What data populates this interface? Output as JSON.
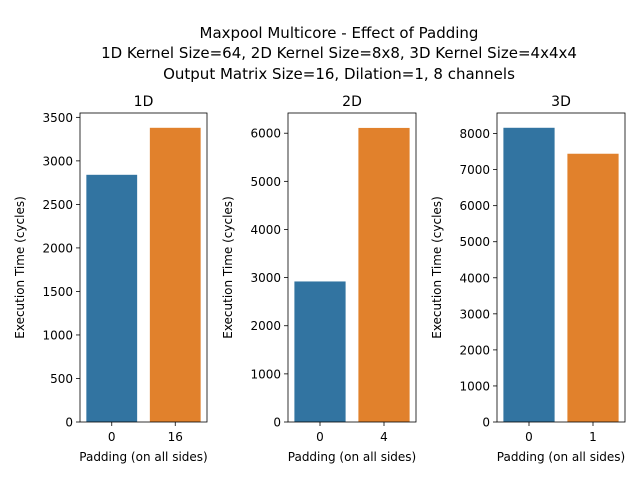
{
  "figure": {
    "suptitle_lines": [
      "Maxpool Multicore - Effect of Padding",
      "1D Kernel Size=64, 2D Kernel Size=8x8, 3D Kernel Size=4x4x4",
      "Output Matrix Size=16, Dilation=1, 8 channels"
    ]
  },
  "colors": {
    "series_a": "#3274a1",
    "series_b": "#e1812c"
  },
  "chart_data": [
    {
      "type": "bar",
      "title": "1D",
      "xlabel": "Padding (on all sides)",
      "ylabel": "Execution Time (cycles)",
      "categories": [
        "0",
        "16"
      ],
      "values": [
        2840,
        3380
      ],
      "ylim": [
        0,
        3550
      ],
      "yticks": [
        0,
        500,
        1000,
        1500,
        2000,
        2500,
        3000,
        3500
      ],
      "grid": false
    },
    {
      "type": "bar",
      "title": "2D",
      "xlabel": "Padding (on all sides)",
      "ylabel": "Execution Time (cycles)",
      "categories": [
        "0",
        "4"
      ],
      "values": [
        2920,
        6110
      ],
      "ylim": [
        0,
        6420
      ],
      "yticks": [
        0,
        1000,
        2000,
        3000,
        4000,
        5000,
        6000
      ],
      "grid": false
    },
    {
      "type": "bar",
      "title": "3D",
      "xlabel": "Padding (on all sides)",
      "ylabel": "Execution Time (cycles)",
      "categories": [
        "0",
        "1"
      ],
      "values": [
        8160,
        7440
      ],
      "ylim": [
        0,
        8570
      ],
      "yticks": [
        0,
        1000,
        2000,
        3000,
        4000,
        5000,
        6000,
        7000,
        8000
      ],
      "grid": false
    }
  ]
}
